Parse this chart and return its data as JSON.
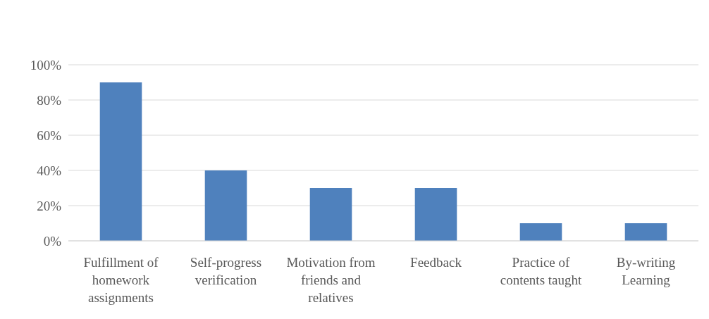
{
  "chart_data": {
    "type": "bar",
    "categories": [
      "Fulfillment of homework assignments",
      "Self-progress verification",
      "Motivation from friends and relatives",
      "Feedback",
      "Practice of contents taught",
      "By-writing Learning"
    ],
    "values": [
      90,
      40,
      30,
      30,
      10,
      10
    ],
    "color": "#4f81bd",
    "ylim": [
      0,
      100
    ],
    "yticks": [
      {
        "value": 0,
        "label": "0%"
      },
      {
        "value": 20,
        "label": "20%"
      },
      {
        "value": 40,
        "label": "40%"
      },
      {
        "value": 60,
        "label": "60%"
      },
      {
        "value": 80,
        "label": "80%"
      },
      {
        "value": 100,
        "label": "100%"
      }
    ],
    "grid": "y"
  }
}
